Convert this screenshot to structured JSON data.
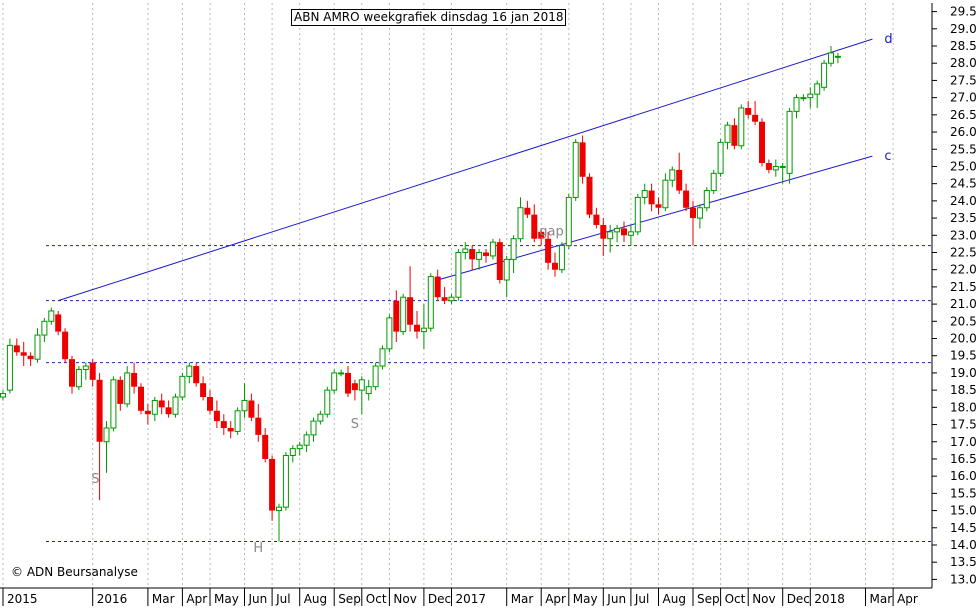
{
  "chart_data": {
    "type": "candlestick",
    "title": "ABN AMRO weekgrafiek dinsdag 16 jan 2018",
    "copyright": "© ADN Beursanalyse",
    "ylim": [
      12.75,
      29.75
    ],
    "y_ticks": [
      13.0,
      13.5,
      14.0,
      14.5,
      15.0,
      15.5,
      16.0,
      16.5,
      17.0,
      17.5,
      18.0,
      18.5,
      19.0,
      19.5,
      20.0,
      20.5,
      21.0,
      21.5,
      22.0,
      22.5,
      23.0,
      23.5,
      24.0,
      24.5,
      25.0,
      25.5,
      26.0,
      26.5,
      27.0,
      27.5,
      28.0,
      28.5,
      29.0,
      29.5
    ],
    "y_tick_labels": [
      "13.0",
      "13.5",
      "14.0",
      "14.5",
      "15.0",
      "15.5",
      "16.0",
      "16.5",
      "17.0",
      "17.5",
      "18.0",
      "18.5",
      "19.0",
      "19.5",
      "20.0",
      "20.5",
      "21.0",
      "21.5",
      "22.0",
      "22.5",
      "23.0",
      "23.5",
      "24.0",
      "24.5",
      "25.0",
      "25.5",
      "26.0",
      "26.5",
      "27.0",
      "27.5",
      "28.0",
      "28.5",
      "29.0",
      "29.5"
    ],
    "x_tick_labels": [
      "2015",
      "2016",
      "Mar",
      "Apr",
      "May",
      "Jun",
      "Jul",
      "Aug",
      "Sep",
      "Oct",
      "Nov",
      "Dec",
      "2017",
      "Mar",
      "Apr",
      "May",
      "Jun",
      "Jul",
      "Aug",
      "Sep",
      "Oct",
      "Nov",
      "Dec",
      "2018",
      "Mar",
      "Apr"
    ],
    "x_tick_weeks": [
      0,
      13,
      21,
      26,
      30,
      35,
      39,
      43,
      48,
      52,
      56,
      61,
      65,
      73,
      78,
      82,
      87,
      91,
      95,
      100,
      104,
      108,
      113,
      117,
      125,
      129
    ],
    "first_week": "2015-11-02",
    "candles": [
      {
        "o": 18.3,
        "h": 18.5,
        "l": 18.2,
        "c": 18.4
      },
      {
        "o": 18.5,
        "h": 20.0,
        "l": 18.4,
        "c": 19.8
      },
      {
        "o": 19.8,
        "h": 20.0,
        "l": 19.5,
        "c": 19.6
      },
      {
        "o": 19.6,
        "h": 19.9,
        "l": 19.2,
        "c": 19.5
      },
      {
        "o": 19.5,
        "h": 19.6,
        "l": 19.2,
        "c": 19.4
      },
      {
        "o": 19.4,
        "h": 20.3,
        "l": 19.3,
        "c": 20.1
      },
      {
        "o": 20.1,
        "h": 20.6,
        "l": 19.9,
        "c": 20.5
      },
      {
        "o": 20.5,
        "h": 20.9,
        "l": 20.4,
        "c": 20.8
      },
      {
        "o": 20.7,
        "h": 20.8,
        "l": 20.1,
        "c": 20.2
      },
      {
        "o": 20.2,
        "h": 20.3,
        "l": 19.3,
        "c": 19.4
      },
      {
        "o": 19.4,
        "h": 19.5,
        "l": 18.4,
        "c": 18.6
      },
      {
        "o": 18.6,
        "h": 19.2,
        "l": 18.5,
        "c": 19.1
      },
      {
        "o": 19.1,
        "h": 19.3,
        "l": 18.8,
        "c": 19.2
      },
      {
        "o": 19.3,
        "h": 19.4,
        "l": 18.6,
        "c": 18.8
      },
      {
        "o": 18.8,
        "h": 19.0,
        "l": 15.3,
        "c": 17.0
      },
      {
        "o": 17.0,
        "h": 17.6,
        "l": 16.1,
        "c": 17.4
      },
      {
        "o": 17.4,
        "h": 18.9,
        "l": 17.3,
        "c": 18.8
      },
      {
        "o": 18.8,
        "h": 18.9,
        "l": 17.9,
        "c": 18.1
      },
      {
        "o": 18.1,
        "h": 19.2,
        "l": 18.0,
        "c": 19.0
      },
      {
        "o": 19.0,
        "h": 19.3,
        "l": 18.4,
        "c": 18.6
      },
      {
        "o": 18.6,
        "h": 18.7,
        "l": 17.8,
        "c": 17.9
      },
      {
        "o": 17.9,
        "h": 18.1,
        "l": 17.5,
        "c": 17.8
      },
      {
        "o": 17.8,
        "h": 18.3,
        "l": 17.6,
        "c": 18.2
      },
      {
        "o": 18.2,
        "h": 18.4,
        "l": 17.8,
        "c": 18.0
      },
      {
        "o": 18.0,
        "h": 18.2,
        "l": 17.7,
        "c": 17.8
      },
      {
        "o": 17.8,
        "h": 18.4,
        "l": 17.7,
        "c": 18.3
      },
      {
        "o": 18.3,
        "h": 19.0,
        "l": 18.2,
        "c": 18.9
      },
      {
        "o": 18.9,
        "h": 19.3,
        "l": 18.7,
        "c": 19.2
      },
      {
        "o": 19.2,
        "h": 19.3,
        "l": 18.6,
        "c": 18.7
      },
      {
        "o": 18.7,
        "h": 18.9,
        "l": 18.2,
        "c": 18.3
      },
      {
        "o": 18.3,
        "h": 18.5,
        "l": 17.8,
        "c": 17.9
      },
      {
        "o": 17.9,
        "h": 18.2,
        "l": 17.4,
        "c": 17.6
      },
      {
        "o": 17.6,
        "h": 17.8,
        "l": 17.2,
        "c": 17.4
      },
      {
        "o": 17.4,
        "h": 17.6,
        "l": 17.1,
        "c": 17.3
      },
      {
        "o": 17.3,
        "h": 18.0,
        "l": 17.2,
        "c": 17.9
      },
      {
        "o": 17.9,
        "h": 18.7,
        "l": 17.7,
        "c": 18.2
      },
      {
        "o": 18.2,
        "h": 18.4,
        "l": 17.6,
        "c": 17.7
      },
      {
        "o": 17.7,
        "h": 18.1,
        "l": 17.0,
        "c": 17.2
      },
      {
        "o": 17.2,
        "h": 17.4,
        "l": 16.4,
        "c": 16.5
      },
      {
        "o": 16.5,
        "h": 16.6,
        "l": 14.7,
        "c": 15.0
      },
      {
        "o": 15.0,
        "h": 15.2,
        "l": 14.1,
        "c": 15.1
      },
      {
        "o": 15.1,
        "h": 16.7,
        "l": 15.0,
        "c": 16.6
      },
      {
        "o": 16.6,
        "h": 16.9,
        "l": 16.4,
        "c": 16.8
      },
      {
        "o": 16.8,
        "h": 17.0,
        "l": 16.6,
        "c": 16.9
      },
      {
        "o": 16.9,
        "h": 17.3,
        "l": 16.7,
        "c": 17.2
      },
      {
        "o": 17.2,
        "h": 17.7,
        "l": 17.0,
        "c": 17.6
      },
      {
        "o": 17.6,
        "h": 17.9,
        "l": 17.5,
        "c": 17.8
      },
      {
        "o": 17.8,
        "h": 18.6,
        "l": 17.7,
        "c": 18.5
      },
      {
        "o": 18.5,
        "h": 19.1,
        "l": 18.4,
        "c": 19.0
      },
      {
        "o": 19.0,
        "h": 19.1,
        "l": 18.9,
        "c": 19.0
      },
      {
        "o": 19.0,
        "h": 19.2,
        "l": 18.3,
        "c": 18.4
      },
      {
        "o": 18.7,
        "h": 18.8,
        "l": 18.2,
        "c": 18.5
      },
      {
        "o": 18.5,
        "h": 18.9,
        "l": 17.8,
        "c": 18.8
      },
      {
        "o": 18.4,
        "h": 18.8,
        "l": 18.2,
        "c": 18.6
      },
      {
        "o": 18.6,
        "h": 19.3,
        "l": 18.5,
        "c": 19.2
      },
      {
        "o": 19.2,
        "h": 19.8,
        "l": 19.1,
        "c": 19.7
      },
      {
        "o": 19.7,
        "h": 20.7,
        "l": 19.6,
        "c": 20.6
      },
      {
        "o": 21.1,
        "h": 21.4,
        "l": 19.9,
        "c": 20.2
      },
      {
        "o": 20.2,
        "h": 21.3,
        "l": 20.1,
        "c": 21.2
      },
      {
        "o": 21.2,
        "h": 22.1,
        "l": 20.2,
        "c": 20.4
      },
      {
        "o": 20.4,
        "h": 20.8,
        "l": 20.0,
        "c": 20.2
      },
      {
        "o": 20.2,
        "h": 21.0,
        "l": 19.7,
        "c": 20.3
      },
      {
        "o": 20.3,
        "h": 21.9,
        "l": 20.2,
        "c": 21.8
      },
      {
        "o": 21.8,
        "h": 22.0,
        "l": 21.1,
        "c": 21.2
      },
      {
        "o": 21.2,
        "h": 21.5,
        "l": 21.0,
        "c": 21.1
      },
      {
        "o": 21.1,
        "h": 21.3,
        "l": 21.0,
        "c": 21.2
      },
      {
        "o": 21.2,
        "h": 22.6,
        "l": 21.1,
        "c": 22.5
      },
      {
        "o": 22.5,
        "h": 22.8,
        "l": 22.3,
        "c": 22.6
      },
      {
        "o": 22.6,
        "h": 22.7,
        "l": 22.0,
        "c": 22.3
      },
      {
        "o": 22.3,
        "h": 22.6,
        "l": 22.0,
        "c": 22.5
      },
      {
        "o": 22.5,
        "h": 22.6,
        "l": 22.2,
        "c": 22.4
      },
      {
        "o": 22.4,
        "h": 22.9,
        "l": 22.3,
        "c": 22.8
      },
      {
        "o": 22.8,
        "h": 22.9,
        "l": 21.6,
        "c": 21.7
      },
      {
        "o": 21.7,
        "h": 22.4,
        "l": 21.2,
        "c": 22.3
      },
      {
        "o": 22.3,
        "h": 23.0,
        "l": 21.9,
        "c": 22.9
      },
      {
        "o": 22.9,
        "h": 24.1,
        "l": 22.8,
        "c": 23.8
      },
      {
        "o": 23.8,
        "h": 24.0,
        "l": 23.5,
        "c": 23.6
      },
      {
        "o": 23.6,
        "h": 23.9,
        "l": 22.8,
        "c": 22.9
      },
      {
        "o": 23.1,
        "h": 23.2,
        "l": 22.7,
        "c": 22.9
      },
      {
        "o": 22.9,
        "h": 23.1,
        "l": 22.0,
        "c": 22.2
      },
      {
        "o": 22.2,
        "h": 22.5,
        "l": 21.8,
        "c": 22.0
      },
      {
        "o": 22.0,
        "h": 22.8,
        "l": 21.9,
        "c": 22.7
      },
      {
        "o": 22.7,
        "h": 24.2,
        "l": 22.6,
        "c": 24.1
      },
      {
        "o": 24.1,
        "h": 25.8,
        "l": 24.0,
        "c": 25.7
      },
      {
        "o": 25.7,
        "h": 25.9,
        "l": 24.5,
        "c": 24.7
      },
      {
        "o": 24.7,
        "h": 24.8,
        "l": 23.5,
        "c": 23.6
      },
      {
        "o": 23.6,
        "h": 23.8,
        "l": 23.2,
        "c": 23.3
      },
      {
        "o": 23.3,
        "h": 23.5,
        "l": 22.4,
        "c": 22.9
      },
      {
        "o": 22.9,
        "h": 23.3,
        "l": 22.5,
        "c": 23.1
      },
      {
        "o": 23.1,
        "h": 23.3,
        "l": 22.8,
        "c": 23.2
      },
      {
        "o": 23.2,
        "h": 23.4,
        "l": 22.8,
        "c": 23.0
      },
      {
        "o": 23.0,
        "h": 23.3,
        "l": 22.7,
        "c": 23.1
      },
      {
        "o": 23.1,
        "h": 24.2,
        "l": 23.0,
        "c": 24.1
      },
      {
        "o": 24.1,
        "h": 24.5,
        "l": 23.9,
        "c": 24.3
      },
      {
        "o": 24.3,
        "h": 24.5,
        "l": 23.7,
        "c": 23.9
      },
      {
        "o": 23.9,
        "h": 24.1,
        "l": 23.6,
        "c": 23.8
      },
      {
        "o": 23.8,
        "h": 24.8,
        "l": 23.7,
        "c": 24.6
      },
      {
        "o": 24.6,
        "h": 25.0,
        "l": 24.4,
        "c": 24.9
      },
      {
        "o": 24.9,
        "h": 25.4,
        "l": 24.2,
        "c": 24.3
      },
      {
        "o": 24.3,
        "h": 24.5,
        "l": 23.7,
        "c": 23.8
      },
      {
        "o": 23.8,
        "h": 24.0,
        "l": 22.7,
        "c": 23.5
      },
      {
        "o": 23.5,
        "h": 23.9,
        "l": 23.2,
        "c": 23.8
      },
      {
        "o": 23.8,
        "h": 24.4,
        "l": 23.7,
        "c": 24.3
      },
      {
        "o": 24.3,
        "h": 24.9,
        "l": 24.2,
        "c": 24.8
      },
      {
        "o": 24.8,
        "h": 25.8,
        "l": 24.7,
        "c": 25.7
      },
      {
        "o": 25.7,
        "h": 26.3,
        "l": 25.5,
        "c": 26.2
      },
      {
        "o": 26.2,
        "h": 26.4,
        "l": 25.5,
        "c": 25.6
      },
      {
        "o": 25.6,
        "h": 26.8,
        "l": 25.5,
        "c": 26.7
      },
      {
        "o": 26.7,
        "h": 26.9,
        "l": 26.4,
        "c": 26.5
      },
      {
        "o": 26.5,
        "h": 26.9,
        "l": 26.2,
        "c": 26.3
      },
      {
        "o": 26.3,
        "h": 26.4,
        "l": 25.0,
        "c": 25.1
      },
      {
        "o": 25.1,
        "h": 25.2,
        "l": 24.8,
        "c": 24.9
      },
      {
        "o": 24.9,
        "h": 25.2,
        "l": 24.7,
        "c": 25.0
      },
      {
        "o": 25.0,
        "h": 25.1,
        "l": 24.5,
        "c": 25.0
      },
      {
        "o": 24.8,
        "h": 26.7,
        "l": 24.5,
        "c": 26.6
      },
      {
        "o": 26.6,
        "h": 27.1,
        "l": 26.4,
        "c": 27.0
      },
      {
        "o": 27.0,
        "h": 27.1,
        "l": 26.9,
        "c": 27.0
      },
      {
        "o": 27.0,
        "h": 27.3,
        "l": 26.7,
        "c": 27.1
      },
      {
        "o": 27.1,
        "h": 27.5,
        "l": 26.7,
        "c": 27.4
      },
      {
        "o": 27.3,
        "h": 28.1,
        "l": 27.2,
        "c": 28.0
      },
      {
        "o": 28.0,
        "h": 28.5,
        "l": 27.9,
        "c": 28.3
      },
      {
        "o": 28.2,
        "h": 28.3,
        "l": 28.0,
        "c": 28.2
      }
    ],
    "horizontal_lines": [
      21.1,
      19.3,
      22.7,
      14.1
    ],
    "trendlines": [
      {
        "label": "d",
        "from_week": 8,
        "from_value": 21.1,
        "to_week": 126,
        "to_value": 28.7
      },
      {
        "label": "c",
        "from_week": 63,
        "from_value": 21.7,
        "to_week": 126,
        "to_value": 25.3
      }
    ],
    "annotations": [
      {
        "text": "S",
        "week": 13.4,
        "value": 15.8
      },
      {
        "text": "H",
        "week": 37.0,
        "value": 13.8
      },
      {
        "text": "S",
        "week": 51.0,
        "value": 17.4
      },
      {
        "text": "gap",
        "week": 79.5,
        "value": 23.0
      }
    ],
    "end_labels": [
      "d",
      "c"
    ]
  },
  "colors": {
    "up": "#009900",
    "down": "#ee0000",
    "trend": "#1a1acc",
    "support": "#2222aa",
    "grid": "#b8b8b8",
    "annotation": "#888888"
  }
}
